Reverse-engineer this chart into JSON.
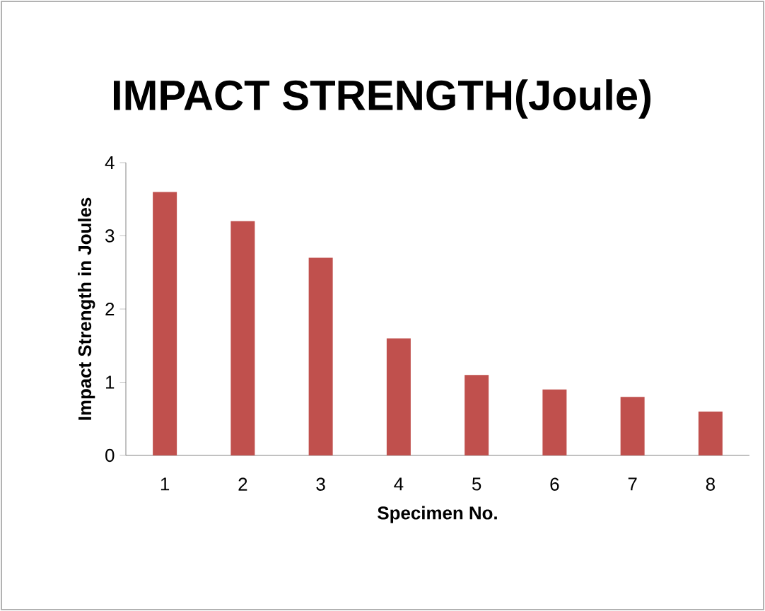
{
  "chart_data": {
    "type": "bar",
    "title": "IMPACT STRENGTH(Joule)",
    "xlabel": "Specimen No.",
    "ylabel": "Impact Strength in Joules",
    "categories": [
      "1",
      "2",
      "3",
      "4",
      "5",
      "6",
      "7",
      "8"
    ],
    "values": [
      3.6,
      3.2,
      2.7,
      1.6,
      1.1,
      0.9,
      0.8,
      0.6
    ],
    "color": "#c0504d",
    "ylim": [
      0,
      4
    ],
    "yticks": [
      0,
      1,
      2,
      3,
      4
    ],
    "grid": false
  }
}
